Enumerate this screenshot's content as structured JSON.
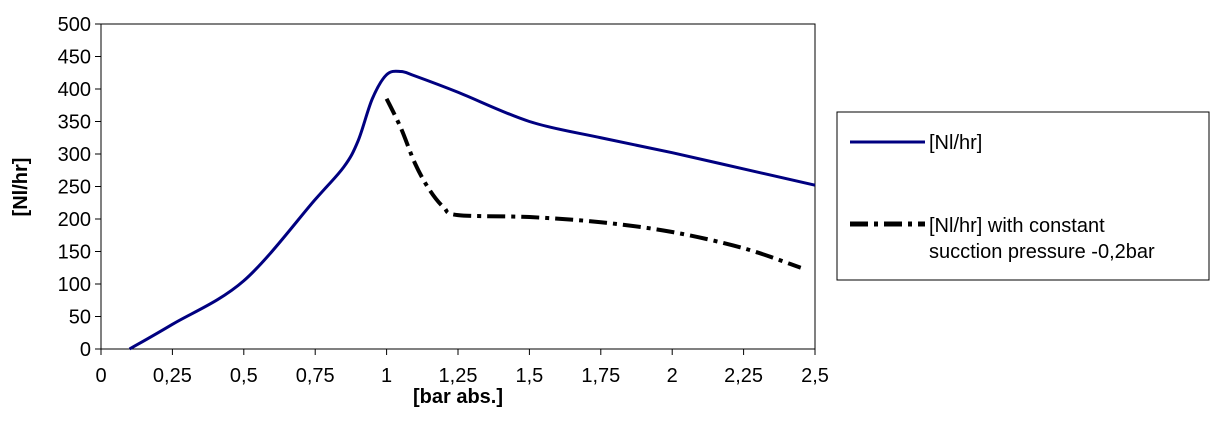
{
  "chart_data": {
    "type": "line",
    "xlabel": "[bar abs.]",
    "ylabel": "[Nl/hr]",
    "xlim": [
      0,
      2.5
    ],
    "ylim": [
      0,
      500
    ],
    "x_ticks": [
      "0",
      "0,25",
      "0,5",
      "0,75",
      "1",
      "1,25",
      "1,5",
      "1,75",
      "2",
      "2,25",
      "2,5"
    ],
    "y_ticks": [
      "0",
      "50",
      "100",
      "150",
      "200",
      "250",
      "300",
      "350",
      "400",
      "450",
      "500"
    ],
    "grid": false,
    "legend_position": "right",
    "series": [
      {
        "name": "[Nl/hr]",
        "color": "#000080",
        "style": "solid",
        "x": [
          0.1,
          0.25,
          0.5,
          0.75,
          0.85,
          0.9,
          0.95,
          1.0,
          1.05,
          1.1,
          1.25,
          1.5,
          1.75,
          2.0,
          2.25,
          2.5
        ],
        "y": [
          0,
          38,
          105,
          230,
          280,
          320,
          385,
          422,
          427,
          420,
          395,
          350,
          325,
          302,
          277,
          252
        ]
      },
      {
        "name": "[Nl/hr] with constant sucction pressure -0,2bar",
        "color": "#000000",
        "style": "dash-dot",
        "x": [
          1.0,
          1.05,
          1.1,
          1.15,
          1.2,
          1.25,
          1.5,
          1.75,
          2.0,
          2.25,
          2.45
        ],
        "y": [
          385,
          340,
          285,
          245,
          218,
          206,
          203,
          195,
          180,
          155,
          125
        ]
      }
    ]
  }
}
